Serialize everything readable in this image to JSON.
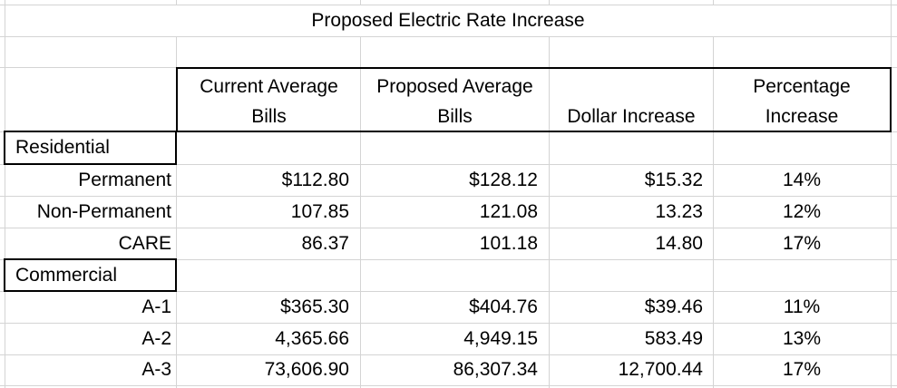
{
  "title": "Proposed Electric Rate Increase",
  "headers": {
    "current_line1": "Current Average",
    "current_line2": "Bills",
    "proposed_line1": "Proposed Average",
    "proposed_line2": "Bills",
    "dollar": "Dollar Increase",
    "percentage_line1": "Percentage",
    "percentage_line2": "Increase"
  },
  "sections": [
    {
      "label": "Residential",
      "rows": [
        {
          "name": "Permanent",
          "current": "$112.80",
          "proposed": "$128.12",
          "dollar": "$15.32",
          "percent": "14%"
        },
        {
          "name": "Non-Permanent",
          "current": "107.85",
          "proposed": "121.08",
          "dollar": "13.23",
          "percent": "12%"
        },
        {
          "name": "CARE",
          "current": "86.37",
          "proposed": "101.18",
          "dollar": "14.80",
          "percent": "17%"
        }
      ]
    },
    {
      "label": "Commercial",
      "rows": [
        {
          "name": "A-1",
          "current": "$365.30",
          "proposed": "$404.76",
          "dollar": "$39.46",
          "percent": "11%"
        },
        {
          "name": "A-2",
          "current": "4,365.66",
          "proposed": "4,949.15",
          "dollar": "583.49",
          "percent": "13%"
        },
        {
          "name": "A-3",
          "current": "73,606.90",
          "proposed": "86,307.34",
          "dollar": "12,700.44",
          "percent": "17%"
        }
      ]
    }
  ]
}
